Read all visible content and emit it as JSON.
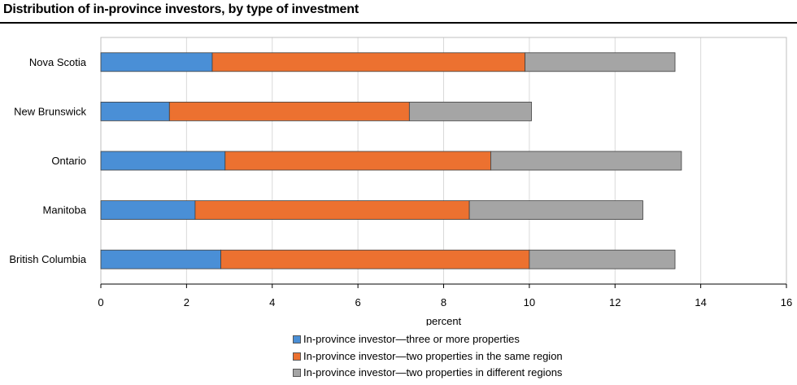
{
  "title": "Distribution of in-province investors, by type of investment",
  "chart_data": {
    "type": "bar",
    "orientation": "horizontal",
    "stacked": true,
    "categories": [
      "Nova Scotia",
      "New Brunswick",
      "Ontario",
      "Manitoba",
      "British Columbia"
    ],
    "series": [
      {
        "name": "In-province investor—three or more properties",
        "color": "#4a8fd6",
        "values": [
          2.6,
          1.6,
          2.9,
          2.2,
          2.8
        ]
      },
      {
        "name": "In-province investor—two properties in the same region",
        "color": "#ec7130",
        "values": [
          7.3,
          5.6,
          6.2,
          6.4,
          7.2
        ]
      },
      {
        "name": "In-province investor—two properties in different regions",
        "color": "#a5a5a5",
        "values": [
          3.5,
          2.85,
          4.45,
          4.05,
          3.4
        ]
      }
    ],
    "xlabel": "percent",
    "ylabel": "",
    "xlim": [
      0,
      16
    ],
    "xticks": [
      "0",
      "2",
      "4",
      "6",
      "8",
      "10",
      "12",
      "14",
      "16"
    ],
    "grid": "vertical",
    "legend": "bottom"
  }
}
